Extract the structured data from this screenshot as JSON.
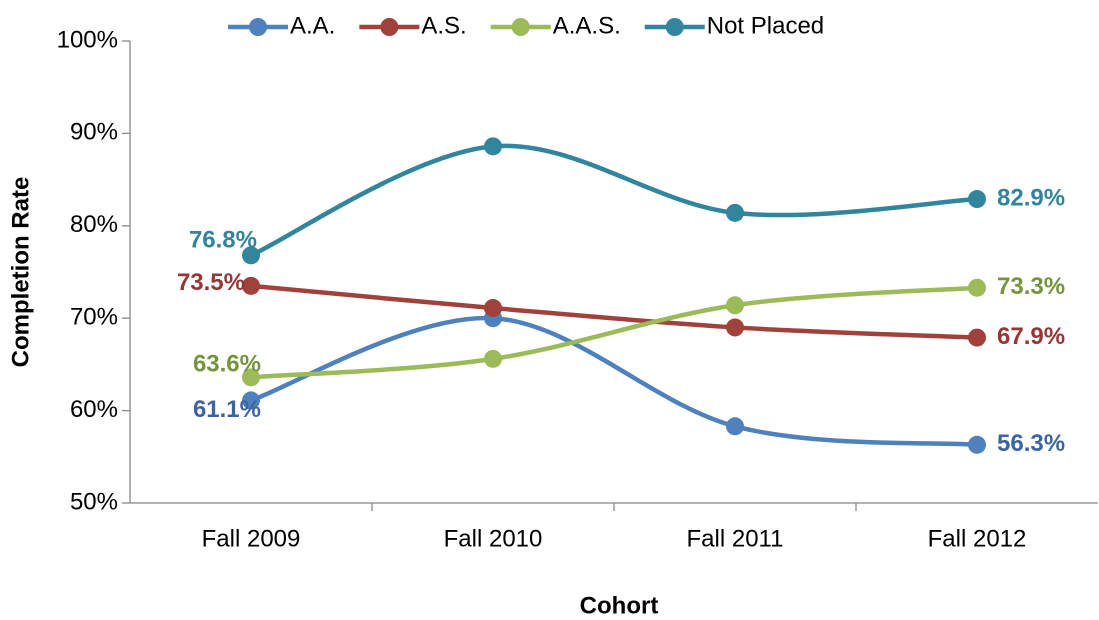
{
  "chart_data": {
    "type": "line",
    "x_label": "Cohort",
    "y_label": "Completion Rate",
    "categories": [
      "Fall 2009",
      "Fall 2010",
      "Fall 2011",
      "Fall 2012"
    ],
    "series": [
      {
        "name": "A.A.",
        "color": "#4f81bd",
        "label_color": "#3d64a0",
        "values": [
          61.1,
          70.0,
          58.3,
          56.3
        ],
        "value_labels": [
          "61.1%",
          null,
          null,
          "56.3%"
        ]
      },
      {
        "name": "A.S.",
        "color": "#a0413c",
        "label_color": "#963634",
        "values": [
          73.5,
          71.1,
          69.0,
          67.9
        ],
        "value_labels": [
          "73.5%",
          null,
          null,
          "67.9%"
        ]
      },
      {
        "name": "A.A.S.",
        "color": "#9bbb59",
        "label_color": "#77933c",
        "values": [
          63.6,
          65.6,
          71.4,
          73.3
        ],
        "value_labels": [
          "63.6%",
          null,
          null,
          "73.3%"
        ]
      },
      {
        "name": "Not Placed",
        "color": "#31859c",
        "label_color": "#31849b",
        "values": [
          76.8,
          88.6,
          81.4,
          82.9
        ],
        "value_labels": [
          "76.8%",
          null,
          null,
          "82.9%"
        ]
      }
    ],
    "ylim": [
      50,
      100
    ],
    "yticks": [
      {
        "value": 50,
        "label": "50%"
      },
      {
        "value": 60,
        "label": "60%"
      },
      {
        "value": 70,
        "label": "70%"
      },
      {
        "value": 80,
        "label": "80%"
      },
      {
        "value": 90,
        "label": "90%"
      },
      {
        "value": 100,
        "label": "100%"
      }
    ],
    "smooth": true,
    "legend": "top"
  }
}
